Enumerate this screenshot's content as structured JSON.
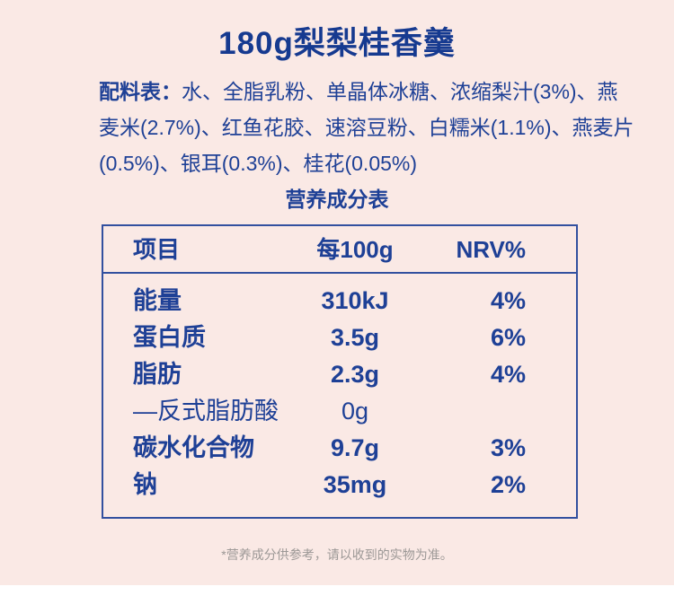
{
  "title": "180g梨梨桂香羹",
  "ingredients": {
    "label": "配料表：",
    "lines": [
      "水、全脂乳粉、单晶体冰糖、浓缩梨汁(3%)、燕",
      "麦米(2.7%)、红鱼花胶、速溶豆粉、白糯米(1.1%)、燕麦片",
      "(0.5%)、银耳(0.3%)、桂花(0.05%)"
    ],
    "full_text": "配料表：水、全脂乳粉、单晶体冰糖、浓缩梨汁(3%)、燕麦米(2.7%)、红鱼花胶、速溶豆粉、白糯米(1.1%)、燕麦片(0.5%)、银耳(0.3%)、桂花(0.05%)"
  },
  "nutrition": {
    "section_title": "营养成分表",
    "columns": {
      "item": "项目",
      "per100g": "每100g",
      "nrv": "NRV%"
    },
    "rows": [
      {
        "item": "能量",
        "per100g": "310kJ",
        "nrv": "4%"
      },
      {
        "item": "蛋白质",
        "per100g": "3.5g",
        "nrv": "6%"
      },
      {
        "item": "脂肪",
        "per100g": "2.3g",
        "nrv": "4%"
      },
      {
        "item": "—反式脂肪酸",
        "per100g": "0g",
        "nrv": ""
      },
      {
        "item": "碳水化合物",
        "per100g": "9.7g",
        "nrv": "3%"
      },
      {
        "item": "钠",
        "per100g": "35mg",
        "nrv": "2%"
      }
    ]
  },
  "footnote": "*营养成分供参考，请以收到的实物为准。",
  "colors": {
    "background_pink": "#fae9e5",
    "text_blue": "#1e4096",
    "title_blue": "#163a90",
    "table_border_blue": "#32509f",
    "footnote_gray": "#9c9896"
  }
}
